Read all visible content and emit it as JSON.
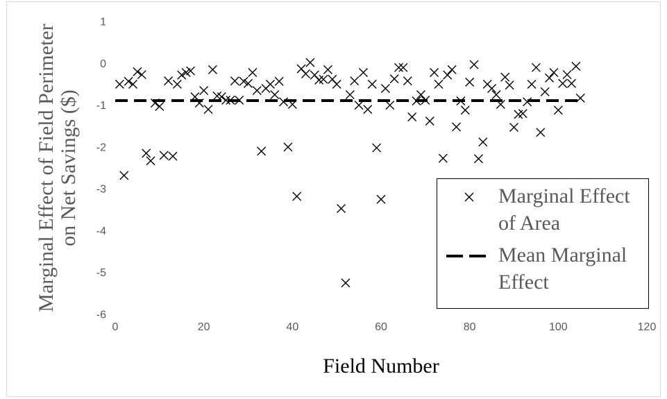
{
  "chart_data": {
    "type": "scatter",
    "xlabel": "Field Number",
    "ylabel": [
      "Marginal Effect of Field Perimeter",
      "on Net Savings ($)"
    ],
    "xlim": [
      0,
      120
    ],
    "ylim": [
      -6,
      1
    ],
    "x_ticks": [
      0,
      20,
      40,
      60,
      80,
      100,
      120
    ],
    "y_ticks": [
      1,
      0,
      -1,
      -2,
      -3,
      -4,
      -5,
      -6
    ],
    "grid": false,
    "legend": {
      "position": "bottom-right"
    },
    "series": [
      {
        "name": "Marginal Effect of Area",
        "marker": "x",
        "color": "#000000",
        "x": [
          1,
          2,
          3,
          4,
          5,
          6,
          7,
          8,
          9,
          10,
          11,
          12,
          13,
          14,
          15,
          16,
          17,
          18,
          19,
          20,
          21,
          22,
          23,
          24,
          25,
          26,
          27,
          28,
          29,
          30,
          31,
          32,
          33,
          34,
          35,
          36,
          37,
          38,
          39,
          40,
          41,
          42,
          43,
          44,
          45,
          46,
          47,
          48,
          49,
          50,
          51,
          52,
          53,
          54,
          55,
          56,
          57,
          58,
          59,
          60,
          61,
          62,
          63,
          64,
          65,
          66,
          67,
          68,
          69,
          70,
          71,
          72,
          73,
          74,
          75,
          76,
          77,
          78,
          79,
          80,
          81,
          82,
          83,
          84,
          85,
          86,
          87,
          88,
          89,
          90,
          91,
          92,
          93,
          94,
          95,
          96,
          97,
          98,
          99,
          100,
          101,
          102,
          103,
          104,
          105
        ],
        "y": [
          -0.5,
          -2.68,
          -0.43,
          -0.5,
          -0.2,
          -0.27,
          -2.15,
          -2.33,
          -0.95,
          -1.03,
          -2.2,
          -0.42,
          -2.22,
          -0.5,
          -0.28,
          -0.22,
          -0.18,
          -0.8,
          -0.95,
          -0.65,
          -1.1,
          -0.15,
          -0.78,
          -0.8,
          -0.88,
          -0.88,
          -0.42,
          -0.88,
          -0.43,
          -0.48,
          -0.22,
          -0.65,
          -2.1,
          -0.6,
          -0.5,
          -0.75,
          -0.43,
          -0.92,
          -2.0,
          -0.98,
          -3.18,
          -0.13,
          -0.25,
          0.02,
          -0.28,
          -0.4,
          -0.38,
          -0.15,
          -0.38,
          -0.5,
          -3.47,
          -5.25,
          -0.75,
          -0.42,
          -1.0,
          -0.22,
          -1.1,
          -0.5,
          -2.02,
          -3.25,
          -0.6,
          -1.0,
          -0.37,
          -0.1,
          -0.1,
          -0.42,
          -1.28,
          -0.9,
          -0.75,
          -0.88,
          -1.38,
          -0.22,
          -0.5,
          -2.27,
          -0.28,
          -0.15,
          -1.52,
          -0.9,
          -1.12,
          -0.45,
          -0.03,
          -2.28,
          -1.88,
          -0.5,
          -0.6,
          -0.75,
          -0.98,
          -0.33,
          -0.52,
          -1.53,
          -1.22,
          -1.2,
          -0.92,
          -0.5,
          -0.1,
          -1.65,
          -0.68,
          -0.35,
          -0.22,
          -1.12,
          -0.48,
          -0.27,
          -0.48,
          -0.07,
          -0.83
        ]
      },
      {
        "name": "Mean Marginal Effect",
        "style": "dashed-line",
        "color": "#000000",
        "x": [
          0,
          105
        ],
        "y": [
          -0.89,
          -0.89
        ]
      }
    ]
  }
}
